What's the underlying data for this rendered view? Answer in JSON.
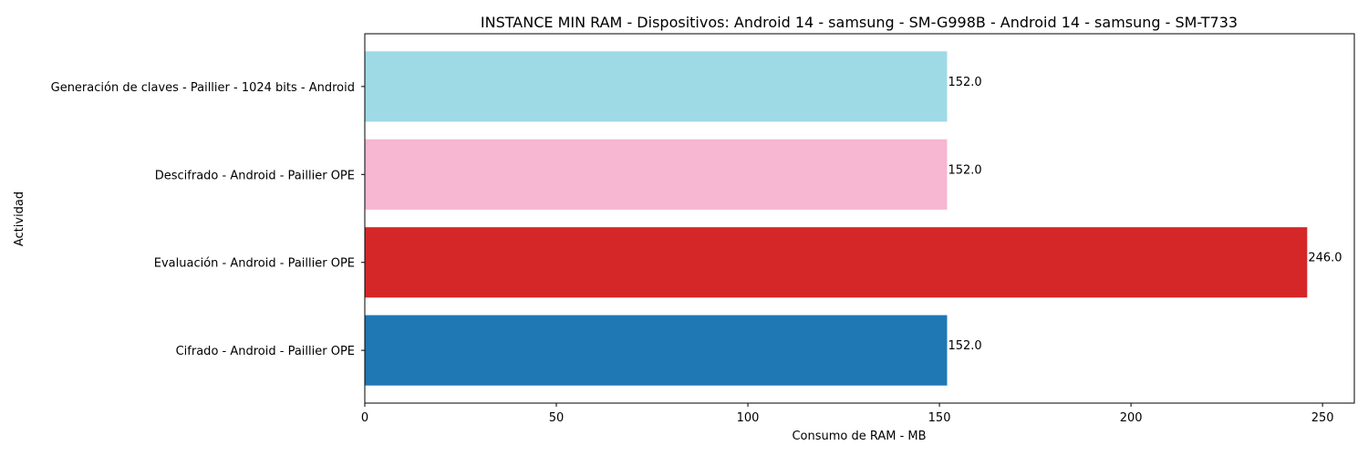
{
  "chart_data": {
    "type": "bar",
    "orientation": "horizontal",
    "title": "INSTANCE MIN RAM - Dispositivos: Android 14 - samsung - SM-G998B - Android 14 - samsung - SM-T733",
    "xlabel": "Consumo de RAM - MB",
    "ylabel": "Actividad",
    "xlim": [
      0,
      258.3
    ],
    "xticks": [
      0,
      50,
      100,
      150,
      200,
      250
    ],
    "grid": false,
    "categories": [
      "Cifrado - Android - Paillier OPE",
      "Evaluación - Android - Paillier OPE",
      "Descifrado - Android - Paillier OPE",
      "Generación de claves - Paillier - 1024 bits - Android"
    ],
    "values": [
      152.0,
      246.0,
      152.0,
      152.0
    ],
    "value_labels": [
      "152.0",
      "246.0",
      "152.0",
      "152.0"
    ],
    "colors": [
      "#1f77b4",
      "#d62728",
      "#f7b6d2",
      "#9edae5"
    ]
  }
}
